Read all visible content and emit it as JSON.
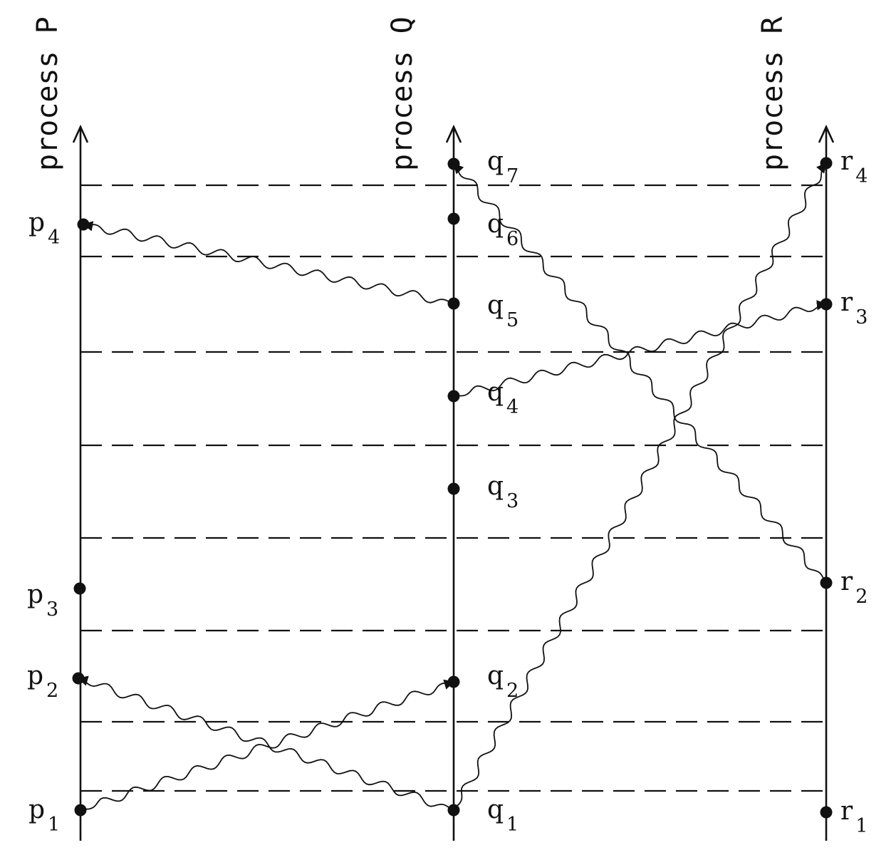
{
  "processes": [
    {
      "id": "P",
      "label": "process P"
    },
    {
      "id": "Q",
      "label": "process Q"
    },
    {
      "id": "R",
      "label": "process R"
    }
  ],
  "events": [
    {
      "id": "p1",
      "letter": "p",
      "index": "1"
    },
    {
      "id": "p2",
      "letter": "p",
      "index": "2"
    },
    {
      "id": "p3",
      "letter": "p",
      "index": "3"
    },
    {
      "id": "p4",
      "letter": "p",
      "index": "4"
    },
    {
      "id": "q1",
      "letter": "q",
      "index": "1"
    },
    {
      "id": "q2",
      "letter": "q",
      "index": "2"
    },
    {
      "id": "q3",
      "letter": "q",
      "index": "3"
    },
    {
      "id": "q4",
      "letter": "q",
      "index": "4"
    },
    {
      "id": "q5",
      "letter": "q",
      "index": "5"
    },
    {
      "id": "q6",
      "letter": "q",
      "index": "6"
    },
    {
      "id": "q7",
      "letter": "q",
      "index": "7"
    },
    {
      "id": "r1",
      "letter": "r",
      "index": "1"
    },
    {
      "id": "r2",
      "letter": "r",
      "index": "2"
    },
    {
      "id": "r3",
      "letter": "r",
      "index": "3"
    },
    {
      "id": "r4",
      "letter": "r",
      "index": "4"
    }
  ],
  "messages": [
    {
      "from": "p1",
      "to": "q2"
    },
    {
      "from": "q1",
      "to": "p2"
    },
    {
      "from": "q1",
      "to": "r4"
    },
    {
      "from": "q4",
      "to": "r3"
    },
    {
      "from": "q5",
      "to": "p4"
    },
    {
      "from": "r2",
      "to": "q7"
    }
  ],
  "tick_lines_count": 8,
  "colors": {
    "ink": "#111111",
    "background": "#ffffff"
  }
}
